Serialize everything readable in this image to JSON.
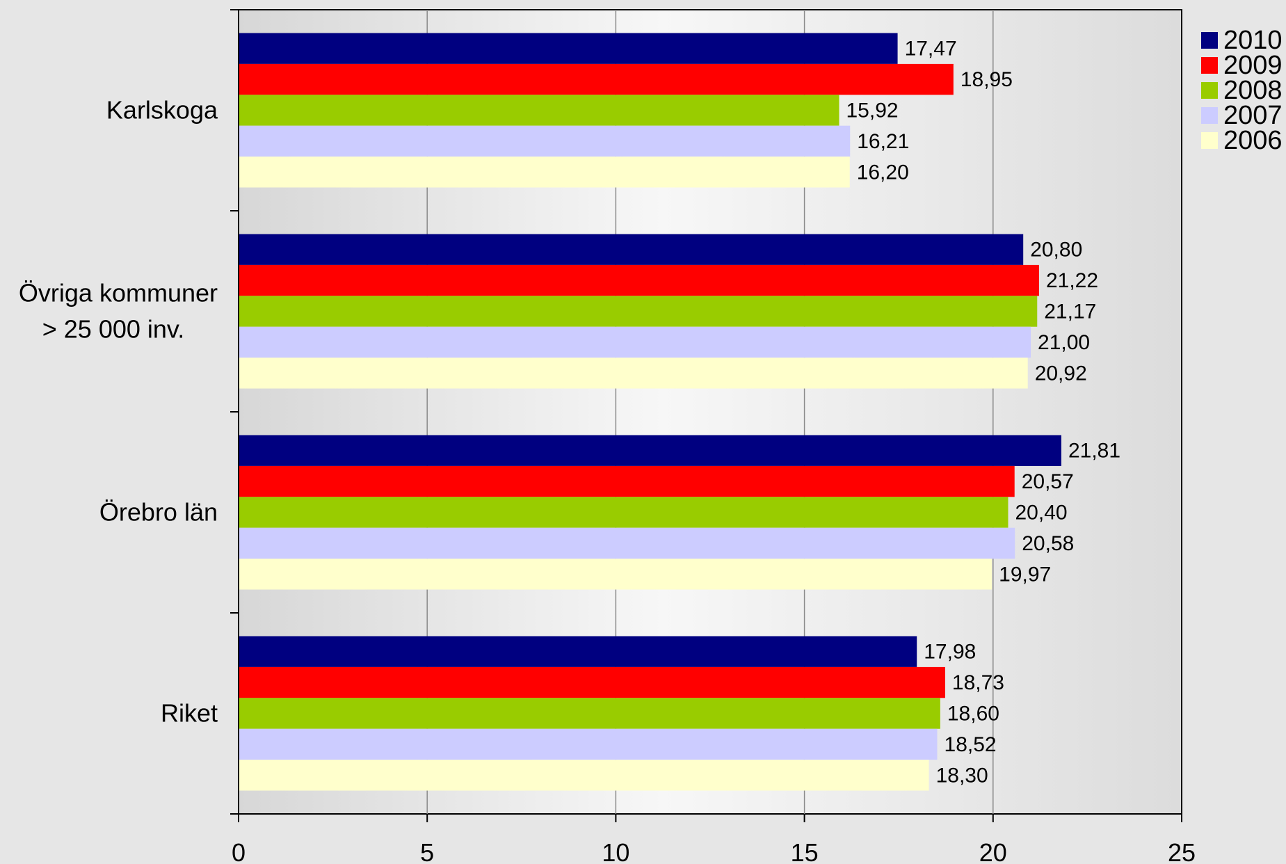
{
  "chart_data": {
    "type": "bar",
    "orientation": "horizontal",
    "categories": [
      "Karlskoga",
      "Övriga kommuner\n> 25 000 inv.",
      "Örebro län",
      "Riket"
    ],
    "series": [
      {
        "name": "2010",
        "color": "#000080",
        "values": [
          17.47,
          20.8,
          21.81,
          17.98
        ],
        "labels": [
          "17,47",
          "20,80",
          "21,81",
          "17,98"
        ]
      },
      {
        "name": "2009",
        "color": "#ff0000",
        "values": [
          18.95,
          21.22,
          20.57,
          18.73
        ],
        "labels": [
          "18,95",
          "21,22",
          "20,57",
          "18,73"
        ]
      },
      {
        "name": "2008",
        "color": "#99cc00",
        "values": [
          15.92,
          21.17,
          20.4,
          18.6
        ],
        "labels": [
          "15,92",
          "21,17",
          "20,40",
          "18,60"
        ]
      },
      {
        "name": "2007",
        "color": "#ccccff",
        "values": [
          16.21,
          21.0,
          20.58,
          18.52
        ],
        "labels": [
          "16,21",
          "21,00",
          "20,58",
          "18,52"
        ]
      },
      {
        "name": "2006",
        "color": "#ffffcc",
        "values": [
          16.2,
          20.92,
          19.97,
          18.3
        ],
        "labels": [
          "16,20",
          "20,92",
          "19,97",
          "18,30"
        ]
      }
    ],
    "xlim": [
      0,
      25
    ],
    "xticks": [
      "0",
      "5",
      "10",
      "15",
      "20",
      "25"
    ],
    "grid": true,
    "legend": "top-right"
  }
}
